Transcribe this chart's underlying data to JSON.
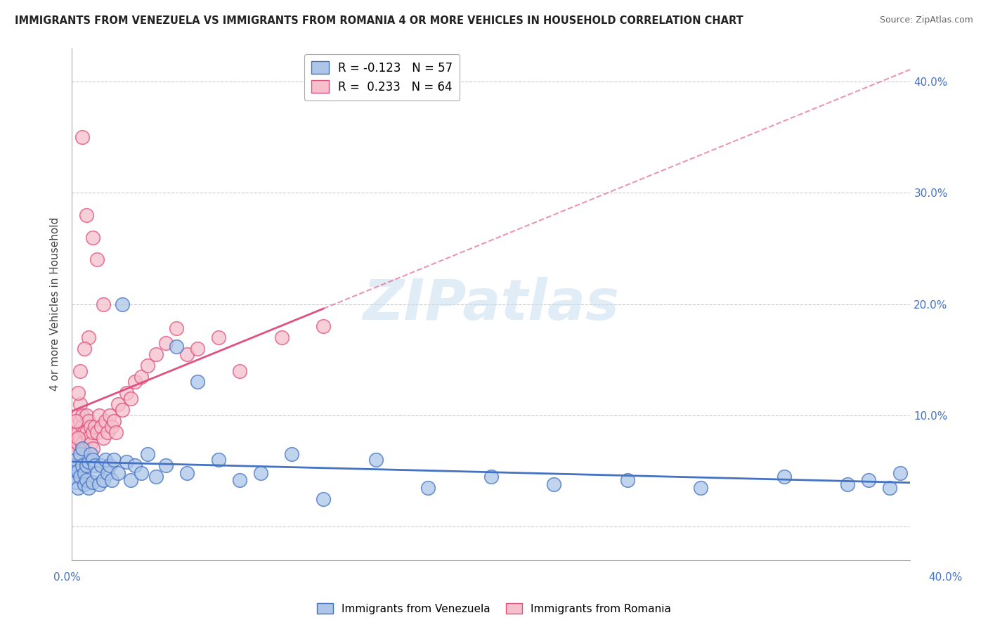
{
  "title": "IMMIGRANTS FROM VENEZUELA VS IMMIGRANTS FROM ROMANIA 4 OR MORE VEHICLES IN HOUSEHOLD CORRELATION CHART",
  "source": "Source: ZipAtlas.com",
  "ylabel": "4 or more Vehicles in Household",
  "legend_venezuela": "R = -0.123   N = 57",
  "legend_romania": "R =  0.233   N = 64",
  "xlim": [
    0.0,
    0.4
  ],
  "ylim": [
    -0.03,
    0.43
  ],
  "venezuela_color": "#adc6e8",
  "venezuela_edge_color": "#4472c4",
  "romania_color": "#f5c0cb",
  "romania_edge_color": "#e05080",
  "romania_line_color": "#e05080",
  "venezuela_line_color": "#4472c4",
  "background_color": "#ffffff",
  "watermark_text": "ZIPatlas",
  "venezuela_x": [
    0.001,
    0.001,
    0.002,
    0.002,
    0.003,
    0.003,
    0.004,
    0.004,
    0.005,
    0.005,
    0.006,
    0.006,
    0.007,
    0.007,
    0.008,
    0.008,
    0.009,
    0.01,
    0.01,
    0.011,
    0.012,
    0.013,
    0.014,
    0.015,
    0.016,
    0.017,
    0.018,
    0.019,
    0.02,
    0.022,
    0.024,
    0.026,
    0.028,
    0.03,
    0.033,
    0.036,
    0.04,
    0.045,
    0.05,
    0.055,
    0.06,
    0.07,
    0.08,
    0.09,
    0.105,
    0.12,
    0.145,
    0.17,
    0.2,
    0.23,
    0.265,
    0.3,
    0.34,
    0.37,
    0.38,
    0.39,
    0.395
  ],
  "venezuela_y": [
    0.055,
    0.045,
    0.06,
    0.04,
    0.05,
    0.035,
    0.065,
    0.045,
    0.07,
    0.055,
    0.048,
    0.038,
    0.055,
    0.042,
    0.058,
    0.035,
    0.065,
    0.06,
    0.04,
    0.055,
    0.048,
    0.038,
    0.055,
    0.042,
    0.06,
    0.048,
    0.055,
    0.042,
    0.06,
    0.048,
    0.2,
    0.058,
    0.042,
    0.055,
    0.048,
    0.065,
    0.045,
    0.055,
    0.162,
    0.048,
    0.13,
    0.06,
    0.042,
    0.048,
    0.065,
    0.025,
    0.06,
    0.035,
    0.045,
    0.038,
    0.042,
    0.035,
    0.045,
    0.038,
    0.042,
    0.035,
    0.048
  ],
  "romania_x": [
    0.001,
    0.001,
    0.001,
    0.002,
    0.002,
    0.003,
    0.003,
    0.003,
    0.004,
    0.004,
    0.004,
    0.005,
    0.005,
    0.005,
    0.006,
    0.006,
    0.007,
    0.007,
    0.008,
    0.008,
    0.009,
    0.009,
    0.01,
    0.01,
    0.011,
    0.012,
    0.013,
    0.014,
    0.015,
    0.016,
    0.017,
    0.018,
    0.019,
    0.02,
    0.021,
    0.022,
    0.024,
    0.026,
    0.028,
    0.03,
    0.033,
    0.036,
    0.04,
    0.045,
    0.05,
    0.055,
    0.06,
    0.07,
    0.08,
    0.1,
    0.12,
    0.005,
    0.007,
    0.01,
    0.012,
    0.015,
    0.008,
    0.006,
    0.004,
    0.003,
    0.002,
    0.003,
    0.004,
    0.006
  ],
  "romania_y": [
    0.08,
    0.075,
    0.065,
    0.09,
    0.085,
    0.1,
    0.085,
    0.075,
    0.11,
    0.095,
    0.08,
    0.1,
    0.09,
    0.075,
    0.085,
    0.07,
    0.1,
    0.085,
    0.095,
    0.08,
    0.09,
    0.075,
    0.085,
    0.07,
    0.09,
    0.085,
    0.1,
    0.09,
    0.08,
    0.095,
    0.085,
    0.1,
    0.09,
    0.095,
    0.085,
    0.11,
    0.105,
    0.12,
    0.115,
    0.13,
    0.135,
    0.145,
    0.155,
    0.165,
    0.178,
    0.155,
    0.16,
    0.17,
    0.14,
    0.17,
    0.18,
    0.35,
    0.28,
    0.26,
    0.24,
    0.2,
    0.17,
    0.16,
    0.14,
    0.12,
    0.095,
    0.08,
    0.06,
    0.045
  ]
}
